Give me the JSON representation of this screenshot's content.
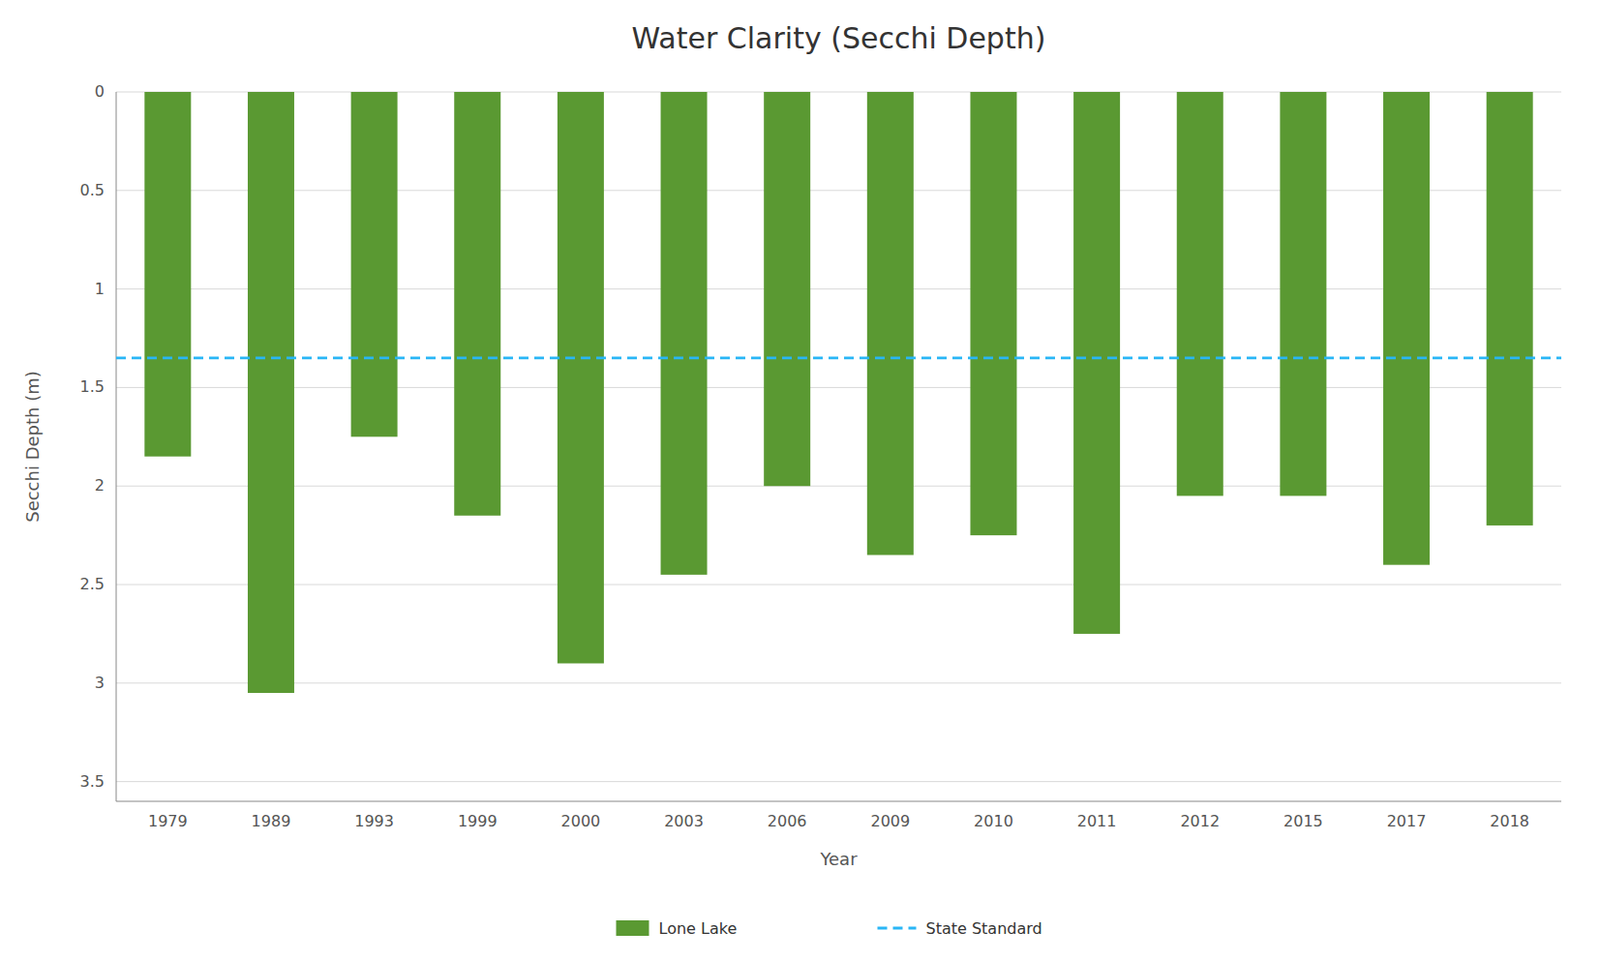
{
  "chart_data": {
    "type": "bar",
    "title": "Water Clarity (Secchi Depth)",
    "x_label": "Year",
    "y_label": "Secchi Depth (m)",
    "categories": [
      "1979",
      "1989",
      "1993",
      "1999",
      "2000",
      "2003",
      "2006",
      "2009",
      "2010",
      "2011",
      "2012",
      "2015",
      "2017",
      "2018"
    ],
    "series": [
      {
        "name": "Lone Lake",
        "color": "#5a9932",
        "values": [
          1.85,
          3.05,
          1.75,
          2.15,
          2.9,
          2.45,
          2.0,
          2.35,
          2.25,
          2.75,
          2.05,
          2.05,
          2.4,
          2.2
        ]
      }
    ],
    "state_standard": {
      "name": "State Standard",
      "value": 1.35,
      "color": "#29b6f6",
      "line_style": "dashed"
    },
    "ylim": [
      3.6,
      0
    ],
    "yticks": [
      0,
      0.5,
      1,
      1.5,
      2,
      2.5,
      3,
      3.5
    ],
    "grid": true,
    "legend": "bottom"
  }
}
